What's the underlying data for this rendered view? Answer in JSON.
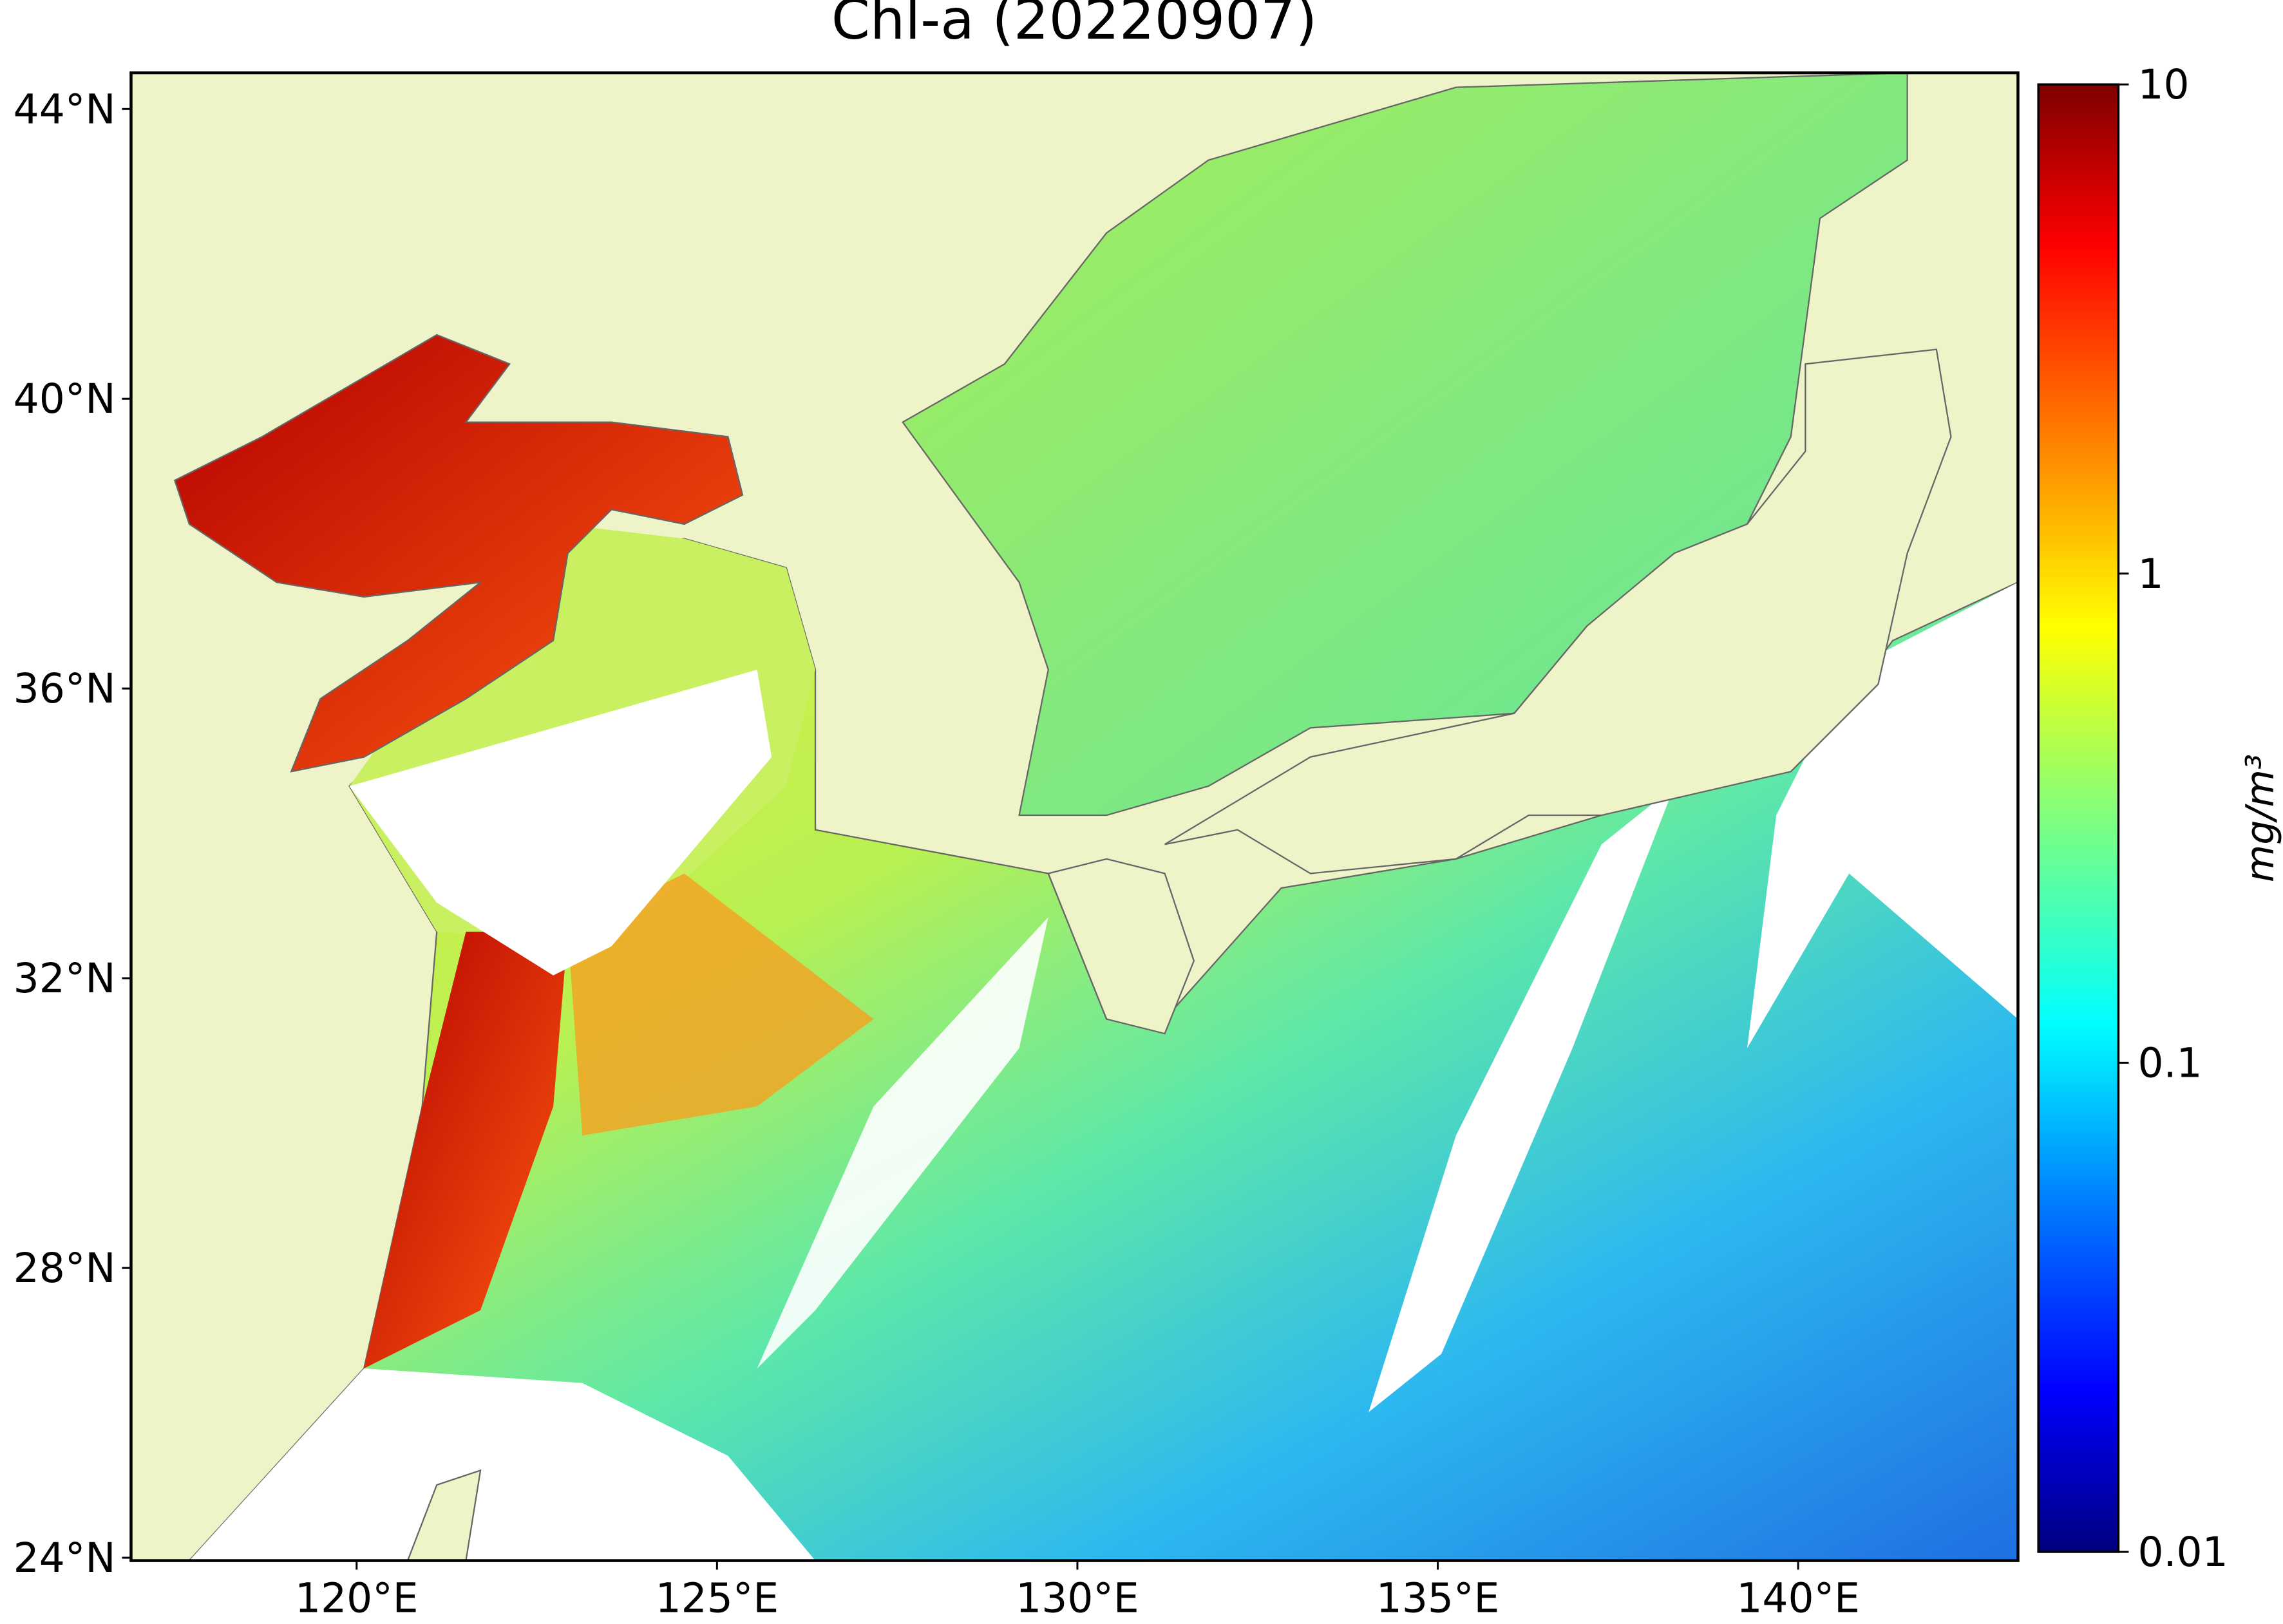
{
  "chart_data": {
    "type": "map",
    "title": "Chl-a (20220907)",
    "xlim": [
      116.87,
      143.05
    ],
    "ylim": [
      23.96,
      44.5
    ],
    "xticks": [
      {
        "value": 120,
        "label": "120°E"
      },
      {
        "value": 125,
        "label": "125°E"
      },
      {
        "value": 130,
        "label": "130°E"
      },
      {
        "value": 135,
        "label": "135°E"
      },
      {
        "value": 140,
        "label": "140°E"
      }
    ],
    "yticks": [
      {
        "value": 24,
        "label": "24°N"
      },
      {
        "value": 28,
        "label": "28°N"
      },
      {
        "value": 32,
        "label": "32°N"
      },
      {
        "value": 36,
        "label": "36°N"
      },
      {
        "value": 40,
        "label": "40°N"
      },
      {
        "value": 44,
        "label": "44°N"
      }
    ],
    "colorbar": {
      "label": "mg/m³",
      "clim": [
        0.01,
        10
      ],
      "log": true,
      "ticks": [
        0.01,
        0.1,
        1,
        10
      ]
    }
  }
}
